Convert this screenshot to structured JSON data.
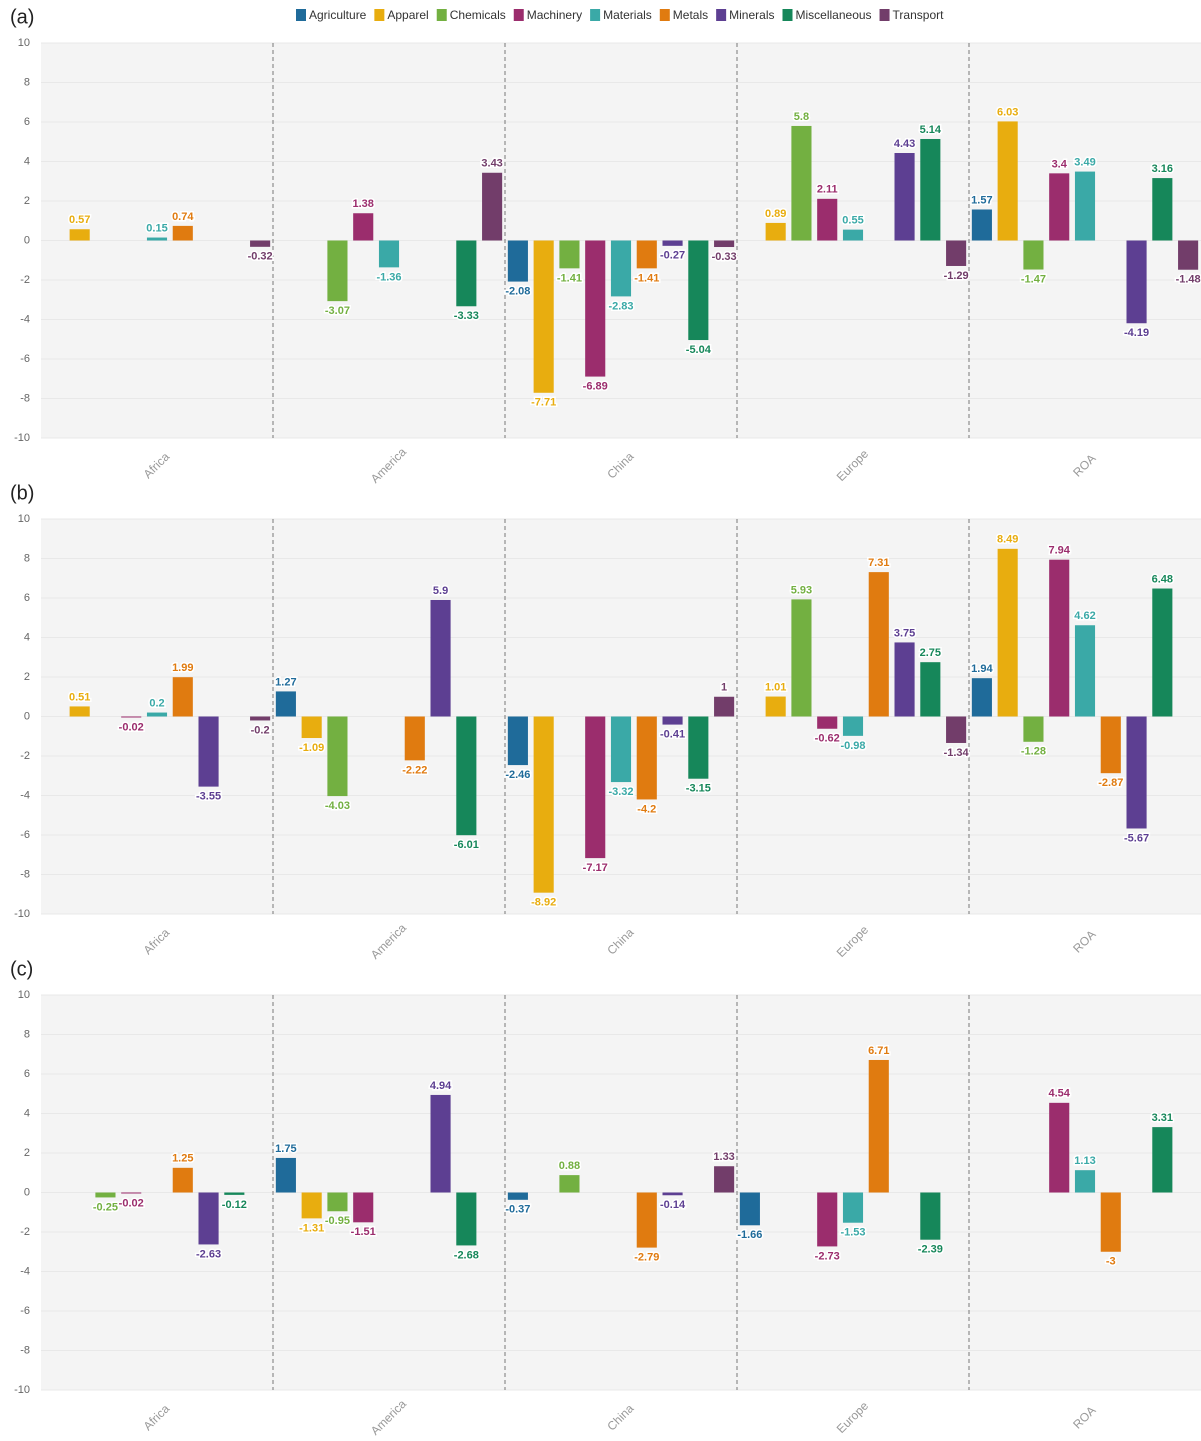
{
  "legend": [
    {
      "name": "Agriculture",
      "color": "#1f6b9a"
    },
    {
      "name": "Apparel",
      "color": "#e8ad0f"
    },
    {
      "name": "Chemicals",
      "color": "#73b041"
    },
    {
      "name": "Machinery",
      "color": "#9b2d6d"
    },
    {
      "name": "Materials",
      "color": "#3aa9a7"
    },
    {
      "name": "Metals",
      "color": "#e07b10"
    },
    {
      "name": "Minerals",
      "color": "#5d3f92"
    },
    {
      "name": "Miscellaneous",
      "color": "#16875a"
    },
    {
      "name": "Transport",
      "color": "#723d6a"
    }
  ],
  "chart_data": [
    {
      "type": "bar",
      "label": "(a)",
      "categories": [
        "Africa",
        "America",
        "China",
        "Europe",
        "ROA"
      ],
      "ylim": [
        -10,
        10
      ],
      "yticks": [
        -10,
        -8,
        -6,
        -4,
        -2,
        0,
        2,
        4,
        6,
        8,
        10
      ],
      "series": [
        {
          "values": [
            null,
            null,
            -2.08,
            null,
            1.57
          ]
        },
        {
          "values": [
            0.57,
            null,
            -7.71,
            0.89,
            6.03
          ]
        },
        {
          "values": [
            null,
            -3.07,
            -1.41,
            5.8,
            -1.47
          ]
        },
        {
          "values": [
            null,
            1.38,
            -6.89,
            2.11,
            3.4
          ]
        },
        {
          "values": [
            0.15,
            -1.36,
            -2.83,
            0.55,
            3.49
          ]
        },
        {
          "values": [
            0.74,
            null,
            -1.41,
            null,
            null
          ]
        },
        {
          "values": [
            null,
            null,
            -0.27,
            4.43,
            -4.19
          ]
        },
        {
          "values": [
            null,
            -3.33,
            -5.04,
            5.14,
            3.16
          ]
        },
        {
          "values": [
            -0.32,
            3.43,
            -0.33,
            -1.29,
            -1.48
          ]
        }
      ]
    },
    {
      "type": "bar",
      "label": "(b)",
      "categories": [
        "Africa",
        "America",
        "China",
        "Europe",
        "ROA"
      ],
      "ylim": [
        -10,
        10
      ],
      "yticks": [
        -10,
        -8,
        -6,
        -4,
        -2,
        0,
        2,
        4,
        6,
        8,
        10
      ],
      "series": [
        {
          "values": [
            null,
            1.27,
            -2.46,
            null,
            1.94
          ]
        },
        {
          "values": [
            0.51,
            -1.09,
            -8.92,
            1.01,
            8.49
          ]
        },
        {
          "values": [
            null,
            -4.03,
            null,
            5.93,
            -1.28
          ]
        },
        {
          "values": [
            -0.02,
            null,
            -7.17,
            -0.62,
            7.94
          ]
        },
        {
          "values": [
            0.2,
            null,
            -3.32,
            -0.98,
            4.62
          ]
        },
        {
          "values": [
            1.99,
            -2.22,
            -4.2,
            7.31,
            -2.87
          ]
        },
        {
          "values": [
            -3.55,
            5.9,
            -0.41,
            3.75,
            -5.67
          ]
        },
        {
          "values": [
            null,
            -6.01,
            -3.15,
            2.75,
            6.48
          ]
        },
        {
          "values": [
            -0.2,
            null,
            1,
            -1.34,
            null
          ]
        }
      ]
    },
    {
      "type": "bar",
      "label": "(c)",
      "categories": [
        "Africa",
        "America",
        "China",
        "Europe",
        "ROA"
      ],
      "ylim": [
        -10,
        10
      ],
      "yticks": [
        -10,
        -8,
        -6,
        -4,
        -2,
        0,
        2,
        4,
        6,
        8,
        10
      ],
      "series": [
        {
          "values": [
            null,
            1.75,
            -0.37,
            -1.66,
            null
          ]
        },
        {
          "values": [
            null,
            -1.31,
            null,
            null,
            null
          ]
        },
        {
          "values": [
            -0.25,
            -0.95,
            0.88,
            null,
            null
          ]
        },
        {
          "values": [
            -0.02,
            -1.51,
            null,
            -2.73,
            4.54
          ]
        },
        {
          "values": [
            null,
            null,
            null,
            -1.53,
            1.13
          ]
        },
        {
          "values": [
            1.25,
            null,
            -2.79,
            6.71,
            -3
          ]
        },
        {
          "values": [
            -2.63,
            4.94,
            -0.14,
            null,
            null
          ]
        },
        {
          "values": [
            -0.12,
            -2.68,
            null,
            -2.39,
            3.31
          ]
        },
        {
          "values": [
            null,
            null,
            1.33,
            null,
            null
          ]
        }
      ]
    }
  ]
}
